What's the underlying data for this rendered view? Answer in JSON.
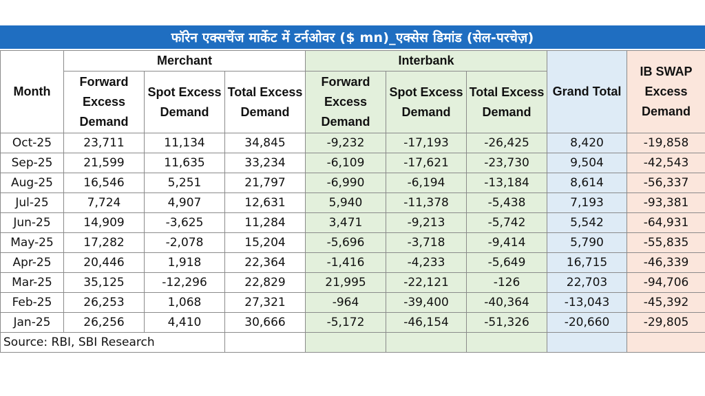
{
  "title": "फॉरेन एक्सचेंज मार्केट में टर्नओवर ($ mn)_एक्सेस डिमांड (सेल-परचेज़)",
  "groups": {
    "merchant": "Merchant",
    "interbank": "Interbank"
  },
  "headers": {
    "month": "Month",
    "m_forward": "Forward Excess Demand",
    "m_spot": "Spot Excess Demand",
    "m_total": "Total Excess Demand",
    "i_forward": "Forward Excess Demand",
    "i_spot": "Spot Excess Demand",
    "i_total": "Total Excess Demand",
    "grand_total": "Grand Total",
    "ib_swap": "IB SWAP Excess Demand"
  },
  "rows": [
    [
      "Oct-25",
      "23,711",
      "11,134",
      "34,845",
      "-9,232",
      "-17,193",
      "-26,425",
      "8,420",
      "-19,858"
    ],
    [
      "Sep-25",
      "21,599",
      "11,635",
      "33,234",
      "-6,109",
      "-17,621",
      "-23,730",
      "9,504",
      "-42,543"
    ],
    [
      "Aug-25",
      "16,546",
      "5,251",
      "21,797",
      "-6,990",
      "-6,194",
      "-13,184",
      "8,614",
      "-56,337"
    ],
    [
      "Jul-25",
      "7,724",
      "4,907",
      "12,631",
      "5,940",
      "-11,378",
      "-5,438",
      "7,193",
      "-93,381"
    ],
    [
      "Jun-25",
      "14,909",
      "-3,625",
      "11,284",
      "3,471",
      "-9,213",
      "-5,742",
      "5,542",
      "-64,931"
    ],
    [
      "May-25",
      "17,282",
      "-2,078",
      "15,204",
      "-5,696",
      "-3,718",
      "-9,414",
      "5,790",
      "-55,835"
    ],
    [
      "Apr-25",
      "20,446",
      "1,918",
      "22,364",
      "-1,416",
      "-4,233",
      "-5,649",
      "16,715",
      "-46,339"
    ],
    [
      "Mar-25",
      "35,125",
      "-12,296",
      "22,829",
      "21,995",
      "-22,121",
      "-126",
      "22,703",
      "-94,706"
    ],
    [
      "Feb-25",
      "26,253",
      "1,068",
      "27,321",
      "-964",
      "-39,400",
      "-40,364",
      "-13,043",
      "-45,392"
    ],
    [
      "Jan-25",
      "26,256",
      "4,410",
      "30,666",
      "-5,172",
      "-46,154",
      "-51,326",
      "-20,660",
      "-29,805"
    ]
  ],
  "source": "Source: RBI, SBI Research"
}
